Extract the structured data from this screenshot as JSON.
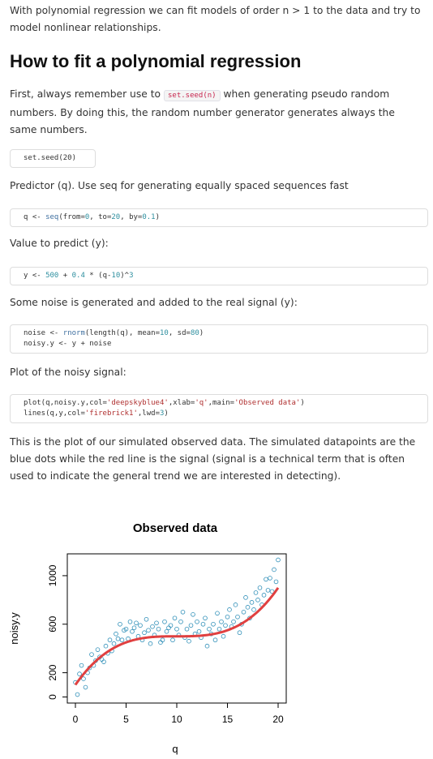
{
  "intro": "With polynomial regression we can fit models of order n > 1 to the data and try to model nonlinear relationships.",
  "heading": "How to fit a polynomial regression",
  "para1": {
    "before": "First, always remember use to ",
    "code": "set.seed(n)",
    "after": " when generating pseudo random numbers. By doing this, the random number generator generates always the same numbers."
  },
  "code1": "set.seed(20)",
  "para2": "Predictor (q). Use seq for generating equally spaced sequences fast",
  "code2": {
    "a": "q <- ",
    "fn": "seq",
    "b": "(from=",
    "n1": "0",
    "c": ", to=",
    "n2": "20",
    "d": ", by=",
    "n3": "0.1",
    "e": ")"
  },
  "para3": "Value to predict (y):",
  "code3": {
    "a": "y <- ",
    "n1": "500",
    "b": " + ",
    "n2": "0.4",
    "c": " * (q-",
    "n3": "10",
    "d": ")^",
    "n4": "3"
  },
  "para4": "Some noise is generated and added to the real signal (y):",
  "code4": {
    "line1": {
      "a": "noise <- ",
      "fn": "rnorm",
      "b": "(length(q), mean=",
      "n1": "10",
      "c": ", sd=",
      "n2": "80",
      "d": ")"
    },
    "line2": "noisy.y <- y + noise"
  },
  "para5": "Plot of the noisy signal:",
  "code5": {
    "line1": {
      "a": "plot(q,noisy.y,col=",
      "s1": "'deepskyblue4'",
      "b": ",xlab=",
      "s2": "'q'",
      "c": ",main=",
      "s3": "'Observed data'",
      "d": ")"
    },
    "line2": {
      "a": "lines(q,y,col=",
      "s1": "'firebrick1'",
      "b": ",lwd=",
      "n1": "3",
      "c": ")"
    }
  },
  "para6": "This is the plot of our simulated observed data. The simulated datapoints are the blue dots while the red line is the signal (signal is a technical term that is often used to indicate the general trend we are interested in detecting).",
  "chart_data": {
    "type": "scatter",
    "title": "Observed data",
    "xlabel": "q",
    "ylabel": "noisy.y",
    "xlim": [
      -0.8,
      20.8
    ],
    "ylim": [
      -50,
      1180
    ],
    "xticks": [
      "0",
      "5",
      "10",
      "15",
      "20"
    ],
    "yticks": [
      "0",
      "200",
      "600",
      "1000"
    ],
    "colors": {
      "points": "#2f8fb8",
      "line": "#e04040"
    },
    "signal": "y = 500 + 0.4*(q-10)^3",
    "points_x": [
      0.0,
      0.2,
      0.4,
      0.6,
      0.8,
      1.0,
      1.2,
      1.4,
      1.6,
      1.8,
      2.0,
      2.2,
      2.4,
      2.6,
      2.8,
      3.0,
      3.2,
      3.4,
      3.6,
      3.8,
      4.0,
      4.2,
      4.4,
      4.6,
      4.8,
      5.0,
      5.2,
      5.4,
      5.6,
      5.8,
      6.0,
      6.2,
      6.4,
      6.6,
      6.8,
      7.0,
      7.2,
      7.4,
      7.6,
      7.8,
      8.0,
      8.2,
      8.4,
      8.6,
      8.8,
      9.0,
      9.2,
      9.4,
      9.6,
      9.8,
      10.0,
      10.2,
      10.4,
      10.6,
      10.8,
      11.0,
      11.2,
      11.4,
      11.6,
      11.8,
      12.0,
      12.2,
      12.4,
      12.6,
      12.8,
      13.0,
      13.2,
      13.4,
      13.6,
      13.8,
      14.0,
      14.2,
      14.4,
      14.6,
      14.8,
      15.0,
      15.2,
      15.4,
      15.6,
      15.8,
      16.0,
      16.2,
      16.4,
      16.6,
      16.8,
      17.0,
      17.2,
      17.4,
      17.6,
      17.8,
      18.0,
      18.2,
      18.4,
      18.6,
      18.8,
      19.0,
      19.2,
      19.4,
      19.6,
      19.8,
      20.0
    ],
    "points_y": [
      120,
      20,
      190,
      260,
      150,
      80,
      200,
      240,
      350,
      260,
      300,
      390,
      330,
      310,
      290,
      420,
      360,
      470,
      380,
      440,
      520,
      480,
      600,
      470,
      550,
      560,
      480,
      620,
      540,
      570,
      610,
      500,
      590,
      470,
      530,
      640,
      550,
      440,
      580,
      510,
      610,
      560,
      450,
      470,
      620,
      540,
      570,
      590,
      470,
      650,
      560,
      510,
      620,
      700,
      490,
      560,
      460,
      590,
      680,
      520,
      620,
      540,
      490,
      600,
      650,
      420,
      560,
      520,
      600,
      470,
      690,
      560,
      620,
      500,
      590,
      660,
      720,
      580,
      620,
      760,
      660,
      530,
      600,
      700,
      820,
      740,
      650,
      780,
      720,
      860,
      800,
      900,
      760,
      840,
      970,
      880,
      980,
      870,
      1050,
      950,
      1130
    ]
  }
}
